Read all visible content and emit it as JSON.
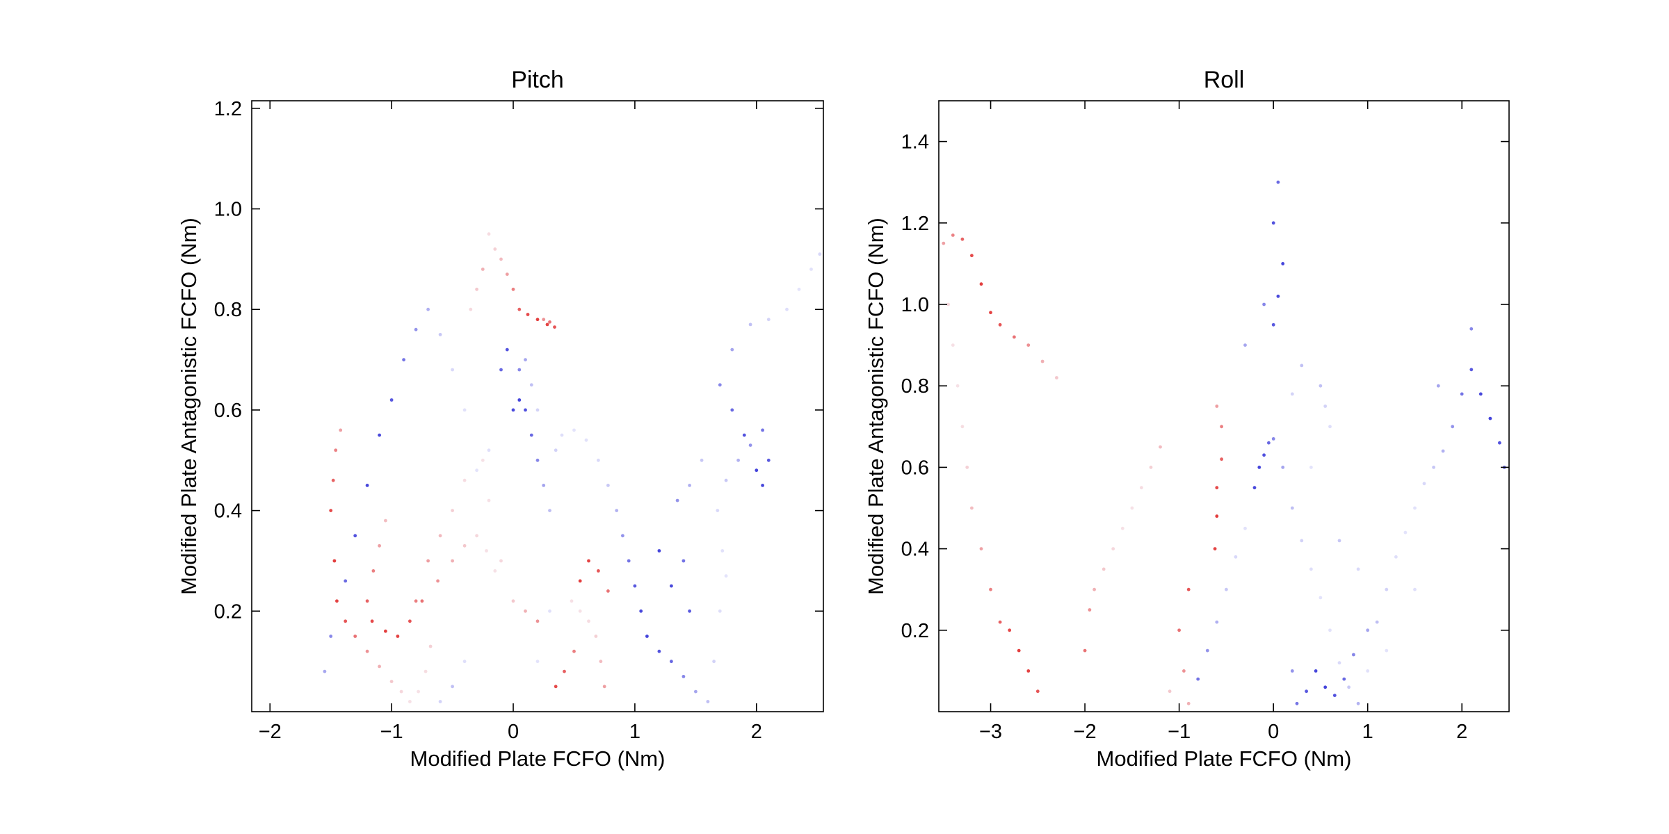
{
  "chart_data": [
    {
      "type": "scatter",
      "title": "Pitch",
      "xlabel": "Modified Plate FCFO (Nm)",
      "ylabel": "Modified Plate Antagonistic FCFO (Nm)",
      "xlim": [
        -2.15,
        2.55
      ],
      "ylim": [
        0.0,
        1.215
      ],
      "xticks": [
        -2,
        -1,
        0,
        1,
        2
      ],
      "xtick_labels": [
        "−2",
        "−1",
        "0",
        "1",
        "2"
      ],
      "yticks": [
        0.2,
        0.4,
        0.6,
        0.8,
        1.0,
        1.2
      ],
      "ytick_labels": [
        "0.2",
        "0.4",
        "0.6",
        "0.8",
        "1.0",
        "1.2"
      ],
      "grid": false,
      "colormap": [
        "#3b3bd9",
        "#f2f2ff",
        "#e23434"
      ],
      "series": [
        {
          "color_scale": "blue-white-red",
          "points": [
            [
              -1.42,
              0.56
            ],
            [
              -1.46,
              0.52
            ],
            [
              -1.48,
              0.46
            ],
            [
              -1.5,
              0.4
            ],
            [
              -1.47,
              0.3
            ],
            [
              -1.45,
              0.22
            ],
            [
              -1.38,
              0.18
            ],
            [
              -1.3,
              0.15
            ],
            [
              -1.2,
              0.12
            ],
            [
              -1.1,
              0.09
            ],
            [
              -1.0,
              0.06
            ],
            [
              -0.92,
              0.04
            ],
            [
              -0.85,
              0.02
            ],
            [
              -0.78,
              0.04
            ],
            [
              -0.72,
              0.08
            ],
            [
              -0.68,
              0.13
            ],
            [
              -1.05,
              0.38
            ],
            [
              -1.1,
              0.33
            ],
            [
              -1.15,
              0.28
            ],
            [
              -1.2,
              0.22
            ],
            [
              -1.16,
              0.18
            ],
            [
              -1.05,
              0.16
            ],
            [
              -0.95,
              0.15
            ],
            [
              -0.85,
              0.18
            ],
            [
              -0.75,
              0.22
            ],
            [
              -0.62,
              0.26
            ],
            [
              -0.5,
              0.3
            ],
            [
              -0.4,
              0.33
            ],
            [
              -0.3,
              0.35
            ],
            [
              -0.22,
              0.32
            ],
            [
              -0.15,
              0.28
            ],
            [
              -0.2,
              0.95
            ],
            [
              -0.15,
              0.92
            ],
            [
              -0.1,
              0.9
            ],
            [
              -0.05,
              0.87
            ],
            [
              0.0,
              0.84
            ],
            [
              0.05,
              0.8
            ],
            [
              0.12,
              0.79
            ],
            [
              0.2,
              0.78
            ],
            [
              0.28,
              0.77
            ],
            [
              0.34,
              0.765
            ],
            [
              0.3,
              0.775
            ],
            [
              0.25,
              0.78
            ],
            [
              -0.25,
              0.88
            ],
            [
              -0.3,
              0.84
            ],
            [
              -0.35,
              0.8
            ],
            [
              0.48,
              0.22
            ],
            [
              0.55,
              0.2
            ],
            [
              0.62,
              0.18
            ],
            [
              0.68,
              0.15
            ],
            [
              0.72,
              0.1
            ],
            [
              0.75,
              0.05
            ],
            [
              0.5,
              0.12
            ],
            [
              0.42,
              0.08
            ],
            [
              0.35,
              0.05
            ],
            [
              0.55,
              0.26
            ],
            [
              0.62,
              0.3
            ],
            [
              0.7,
              0.28
            ],
            [
              0.78,
              0.24
            ],
            [
              0.2,
              0.18
            ],
            [
              0.1,
              0.2
            ],
            [
              0.0,
              0.22
            ],
            [
              -0.1,
              0.3
            ],
            [
              -0.2,
              0.42
            ],
            [
              -0.25,
              0.5
            ],
            [
              -0.4,
              0.46
            ],
            [
              -0.5,
              0.4
            ],
            [
              -0.6,
              0.35
            ],
            [
              -0.7,
              0.3
            ],
            [
              -0.8,
              0.22
            ]
          ]
        },
        {
          "color_scale": "blue-white-red",
          "points": [
            [
              0.0,
              0.6
            ],
            [
              0.05,
              0.62
            ],
            [
              0.1,
              0.6
            ],
            [
              0.15,
              0.55
            ],
            [
              0.2,
              0.5
            ],
            [
              0.25,
              0.45
            ],
            [
              0.3,
              0.4
            ],
            [
              0.35,
              0.52
            ],
            [
              0.4,
              0.55
            ],
            [
              0.5,
              0.56
            ],
            [
              0.6,
              0.54
            ],
            [
              0.7,
              0.5
            ],
            [
              0.78,
              0.45
            ],
            [
              0.85,
              0.4
            ],
            [
              0.9,
              0.35
            ],
            [
              0.95,
              0.3
            ],
            [
              1.0,
              0.25
            ],
            [
              1.05,
              0.2
            ],
            [
              1.1,
              0.15
            ],
            [
              1.2,
              0.12
            ],
            [
              1.3,
              0.1
            ],
            [
              1.4,
              0.07
            ],
            [
              1.5,
              0.04
            ],
            [
              1.6,
              0.02
            ],
            [
              1.65,
              0.1
            ],
            [
              1.7,
              0.2
            ],
            [
              1.75,
              0.27
            ],
            [
              1.72,
              0.32
            ],
            [
              1.68,
              0.4
            ],
            [
              1.75,
              0.46
            ],
            [
              1.85,
              0.5
            ],
            [
              1.95,
              0.53
            ],
            [
              2.05,
              0.56
            ],
            [
              2.1,
              0.5
            ],
            [
              2.05,
              0.45
            ],
            [
              2.0,
              0.48
            ],
            [
              1.9,
              0.55
            ],
            [
              1.8,
              0.6
            ],
            [
              1.7,
              0.65
            ],
            [
              1.8,
              0.72
            ],
            [
              1.95,
              0.77
            ],
            [
              2.1,
              0.78
            ],
            [
              2.25,
              0.8
            ],
            [
              2.35,
              0.84
            ],
            [
              2.45,
              0.88
            ],
            [
              2.52,
              0.91
            ],
            [
              1.55,
              0.5
            ],
            [
              1.45,
              0.45
            ],
            [
              1.35,
              0.42
            ],
            [
              1.4,
              0.3
            ],
            [
              1.45,
              0.2
            ],
            [
              1.3,
              0.25
            ],
            [
              1.2,
              0.32
            ],
            [
              -0.05,
              0.72
            ],
            [
              -0.1,
              0.68
            ],
            [
              0.05,
              0.68
            ],
            [
              0.1,
              0.7
            ],
            [
              0.15,
              0.65
            ],
            [
              0.2,
              0.6
            ],
            [
              -0.2,
              0.52
            ],
            [
              -0.3,
              0.48
            ],
            [
              -0.4,
              0.6
            ],
            [
              -0.5,
              0.68
            ],
            [
              -0.6,
              0.75
            ],
            [
              -0.7,
              0.8
            ],
            [
              -0.8,
              0.76
            ],
            [
              -0.9,
              0.7
            ],
            [
              -1.0,
              0.62
            ],
            [
              -1.1,
              0.55
            ],
            [
              -1.2,
              0.45
            ],
            [
              -1.3,
              0.35
            ],
            [
              -1.38,
              0.26
            ],
            [
              -1.5,
              0.15
            ],
            [
              -1.55,
              0.08
            ],
            [
              -0.5,
              0.05
            ],
            [
              -0.6,
              0.02
            ],
            [
              -0.4,
              0.1
            ],
            [
              0.2,
              0.1
            ],
            [
              0.3,
              0.2
            ]
          ]
        }
      ]
    },
    {
      "type": "scatter",
      "title": "Roll",
      "xlabel": "Modified Plate FCFO (Nm)",
      "ylabel": "Modified Plate Antagonistic FCFO (Nm)",
      "xlim": [
        -3.55,
        2.5
      ],
      "ylim": [
        0.0,
        1.5
      ],
      "xticks": [
        -3,
        -2,
        -1,
        0,
        1,
        2
      ],
      "xtick_labels": [
        "−3",
        "−2",
        "−1",
        "0",
        "1",
        "2"
      ],
      "yticks": [
        0.2,
        0.4,
        0.6,
        0.8,
        1.0,
        1.2,
        1.4
      ],
      "ytick_labels": [
        "0.2",
        "0.4",
        "0.6",
        "0.8",
        "1.0",
        "1.2",
        "1.4"
      ],
      "grid": false,
      "colormap": [
        "#3b3bd9",
        "#f2f2ff",
        "#e23434"
      ],
      "series": [
        {
          "color_scale": "blue-white-red",
          "points": [
            [
              -3.5,
              1.15
            ],
            [
              -3.4,
              1.17
            ],
            [
              -3.3,
              1.16
            ],
            [
              -3.2,
              1.12
            ],
            [
              -3.1,
              1.05
            ],
            [
              -3.0,
              0.98
            ],
            [
              -2.9,
              0.95
            ],
            [
              -2.75,
              0.92
            ],
            [
              -2.6,
              0.9
            ],
            [
              -2.45,
              0.86
            ],
            [
              -2.3,
              0.82
            ],
            [
              -3.45,
              1.0
            ],
            [
              -3.4,
              0.9
            ],
            [
              -3.35,
              0.8
            ],
            [
              -3.3,
              0.7
            ],
            [
              -3.25,
              0.6
            ],
            [
              -3.2,
              0.5
            ],
            [
              -3.1,
              0.4
            ],
            [
              -3.0,
              0.3
            ],
            [
              -2.9,
              0.22
            ],
            [
              -2.8,
              0.2
            ],
            [
              -2.7,
              0.15
            ],
            [
              -2.6,
              0.1
            ],
            [
              -2.5,
              0.05
            ],
            [
              -2.0,
              0.15
            ],
            [
              -1.95,
              0.25
            ],
            [
              -1.9,
              0.3
            ],
            [
              -1.8,
              0.35
            ],
            [
              -1.7,
              0.4
            ],
            [
              -1.6,
              0.45
            ],
            [
              -1.5,
              0.5
            ],
            [
              -1.4,
              0.55
            ],
            [
              -1.3,
              0.6
            ],
            [
              -1.2,
              0.65
            ],
            [
              -0.6,
              0.75
            ],
            [
              -0.55,
              0.7
            ],
            [
              -0.55,
              0.62
            ],
            [
              -0.6,
              0.55
            ],
            [
              -0.6,
              0.48
            ],
            [
              -0.62,
              0.4
            ],
            [
              -0.9,
              0.3
            ],
            [
              -1.0,
              0.2
            ],
            [
              -0.95,
              0.1
            ],
            [
              -0.9,
              0.02
            ],
            [
              -1.1,
              0.05
            ]
          ]
        },
        {
          "color_scale": "blue-white-red",
          "points": [
            [
              -0.2,
              0.55
            ],
            [
              -0.15,
              0.6
            ],
            [
              -0.1,
              0.63
            ],
            [
              -0.05,
              0.66
            ],
            [
              0.0,
              0.67
            ],
            [
              0.1,
              0.6
            ],
            [
              0.2,
              0.5
            ],
            [
              0.3,
              0.42
            ],
            [
              0.4,
              0.35
            ],
            [
              0.5,
              0.28
            ],
            [
              0.6,
              0.2
            ],
            [
              0.7,
              0.12
            ],
            [
              0.8,
              0.06
            ],
            [
              0.9,
              0.02
            ],
            [
              0.2,
              0.1
            ],
            [
              0.25,
              0.02
            ],
            [
              0.35,
              0.05
            ],
            [
              0.45,
              0.1
            ],
            [
              0.55,
              0.06
            ],
            [
              0.65,
              0.04
            ],
            [
              0.75,
              0.08
            ],
            [
              0.85,
              0.14
            ],
            [
              1.0,
              0.2
            ],
            [
              1.1,
              0.22
            ],
            [
              1.2,
              0.3
            ],
            [
              1.3,
              0.38
            ],
            [
              1.4,
              0.44
            ],
            [
              1.5,
              0.5
            ],
            [
              1.6,
              0.56
            ],
            [
              1.7,
              0.6
            ],
            [
              1.8,
              0.64
            ],
            [
              1.9,
              0.7
            ],
            [
              2.0,
              0.78
            ],
            [
              2.1,
              0.84
            ],
            [
              2.2,
              0.78
            ],
            [
              2.3,
              0.72
            ],
            [
              2.4,
              0.66
            ],
            [
              2.45,
              0.6
            ],
            [
              2.1,
              0.94
            ],
            [
              1.75,
              0.8
            ],
            [
              0.5,
              0.8
            ],
            [
              0.55,
              0.75
            ],
            [
              0.6,
              0.7
            ],
            [
              0.4,
              0.6
            ],
            [
              -0.3,
              0.45
            ],
            [
              -0.4,
              0.38
            ],
            [
              -0.5,
              0.3
            ],
            [
              -0.6,
              0.22
            ],
            [
              -0.7,
              0.15
            ],
            [
              -0.8,
              0.08
            ],
            [
              0.0,
              0.95
            ],
            [
              0.05,
              1.02
            ],
            [
              0.1,
              1.1
            ],
            [
              0.0,
              1.2
            ],
            [
              0.05,
              1.3
            ],
            [
              -0.1,
              1.0
            ],
            [
              -0.3,
              0.9
            ],
            [
              0.3,
              0.85
            ],
            [
              0.2,
              0.78
            ],
            [
              1.5,
              0.3
            ],
            [
              1.2,
              0.15
            ],
            [
              1.0,
              0.1
            ],
            [
              0.9,
              0.35
            ],
            [
              0.7,
              0.42
            ]
          ]
        }
      ]
    }
  ]
}
